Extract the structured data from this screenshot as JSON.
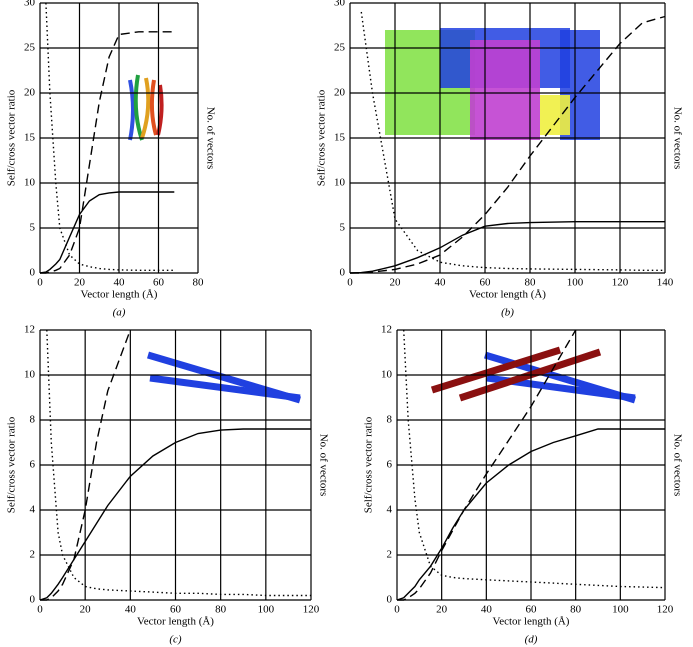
{
  "chart_data": [
    {
      "type": "line",
      "caption": "(a)",
      "xlabel": "Vector length (Å)",
      "ylabel": "Self/cross vector ratio",
      "y2label": "No. of vectors",
      "xlim": [
        0,
        80
      ],
      "xticks": [
        0,
        20,
        40,
        60,
        80
      ],
      "ylim": [
        0,
        30
      ],
      "yticks": [
        0,
        5,
        10,
        15,
        20,
        25,
        30
      ],
      "grid": true,
      "x": [
        0,
        3,
        5,
        8,
        10,
        15,
        20,
        25,
        30,
        35,
        40,
        50,
        60,
        68
      ],
      "series": [
        {
          "color": "#000000",
          "dash": "solid",
          "values": [
            0,
            0.1,
            0.4,
            1,
            1.5,
            4,
            6.5,
            8,
            8.7,
            8.9,
            9,
            9,
            9,
            9
          ]
        },
        {
          "color": "#000000",
          "dash": "dashed",
          "values": [
            0,
            0,
            0.1,
            0.3,
            0.5,
            2,
            5,
            12,
            19,
            24,
            26.5,
            26.8,
            26.8,
            26.8
          ]
        },
        {
          "color": "#000000",
          "dash": "dotted",
          "values": [
            null,
            30,
            20,
            10,
            5,
            2,
            1,
            0.7,
            0.5,
            0.4,
            0.35,
            0.3,
            0.3,
            0.3
          ]
        }
      ]
    },
    {
      "type": "line",
      "caption": "(b)",
      "xlabel": "Vector length (Å)",
      "ylabel": "Self/cross vector ratio",
      "y2label": "No. of vectors",
      "xlim": [
        0,
        140
      ],
      "xticks": [
        0,
        20,
        40,
        60,
        80,
        100,
        120,
        140
      ],
      "ylim": [
        0,
        30
      ],
      "yticks": [
        0,
        5,
        10,
        15,
        20,
        25,
        30
      ],
      "grid": true,
      "x": [
        0,
        5,
        10,
        20,
        30,
        40,
        50,
        60,
        70,
        80,
        100,
        120,
        130,
        140
      ],
      "series": [
        {
          "color": "#000000",
          "dash": "solid",
          "values": [
            0,
            0.05,
            0.2,
            0.8,
            1.7,
            2.8,
            4.2,
            5.2,
            5.5,
            5.6,
            5.7,
            5.7,
            5.7,
            5.7
          ]
        },
        {
          "color": "#000000",
          "dash": "dashed",
          "values": [
            0,
            0,
            0.1,
            0.4,
            1,
            2,
            4,
            6.5,
            9.5,
            13,
            19.5,
            25.5,
            27.8,
            28.5
          ]
        },
        {
          "color": "#000000",
          "dash": "dotted",
          "values": [
            null,
            29,
            20,
            6,
            2.5,
            1.2,
            0.8,
            0.6,
            0.5,
            0.45,
            0.4,
            0.35,
            0.3,
            0.3
          ]
        }
      ]
    },
    {
      "type": "line",
      "caption": "(c)",
      "xlabel": "Vector length (Å)",
      "ylabel": "Self/cross vector ratio",
      "y2label": "No. of vectors",
      "xlim": [
        0,
        120
      ],
      "xticks": [
        0,
        20,
        40,
        60,
        80,
        100,
        120
      ],
      "ylim": [
        0,
        12
      ],
      "yticks": [
        0,
        2,
        4,
        6,
        8,
        10,
        12
      ],
      "grid": true,
      "x": [
        0,
        3,
        5,
        8,
        10,
        15,
        20,
        25,
        30,
        40,
        50,
        60,
        70,
        80,
        90,
        100,
        120
      ],
      "series": [
        {
          "color": "#000000",
          "dash": "solid",
          "values": [
            0,
            0.1,
            0.3,
            0.7,
            1,
            1.8,
            2.6,
            3.4,
            4.2,
            5.5,
            6.4,
            7,
            7.4,
            7.55,
            7.6,
            7.6,
            7.6
          ]
        },
        {
          "color": "#000000",
          "dash": "dashed",
          "values": [
            0,
            0,
            0.1,
            0.4,
            0.7,
            1.8,
            4,
            7,
            9.3,
            12,
            null,
            null,
            null,
            null,
            null,
            null,
            null
          ]
        },
        {
          "color": "#000000",
          "dash": "dotted",
          "values": [
            null,
            12,
            7,
            3,
            2,
            1,
            0.6,
            0.5,
            0.45,
            0.4,
            0.35,
            0.3,
            0.3,
            0.25,
            0.25,
            0.2,
            0.2
          ]
        }
      ]
    },
    {
      "type": "line",
      "caption": "(d)",
      "xlabel": "Vector length (Å)",
      "ylabel": "Self/cross vector ratio",
      "y2label": "No. of vectors",
      "xlim": [
        0,
        120
      ],
      "xticks": [
        0,
        20,
        40,
        60,
        80,
        100,
        120
      ],
      "ylim": [
        0,
        12
      ],
      "yticks": [
        0,
        2,
        4,
        6,
        8,
        10,
        12
      ],
      "grid": true,
      "x": [
        0,
        3,
        5,
        8,
        10,
        15,
        20,
        25,
        30,
        40,
        50,
        60,
        70,
        80,
        90,
        100,
        120
      ],
      "series": [
        {
          "color": "#000000",
          "dash": "solid",
          "values": [
            0,
            0.1,
            0.3,
            0.6,
            0.9,
            1.5,
            2.3,
            3.2,
            4,
            5.2,
            6,
            6.6,
            7,
            7.3,
            7.6,
            7.6,
            7.6
          ]
        },
        {
          "color": "#000000",
          "dash": "dashed",
          "values": [
            0,
            0,
            0.1,
            0.3,
            0.5,
            1.2,
            2.2,
            3.1,
            4,
            5.6,
            7.1,
            8.6,
            10.3,
            12,
            null,
            null,
            null
          ]
        },
        {
          "color": "#000000",
          "dash": "dotted",
          "values": [
            null,
            12,
            8,
            4.5,
            3,
            1.5,
            1.1,
            1,
            0.95,
            0.9,
            0.85,
            0.8,
            0.75,
            0.7,
            0.65,
            0.6,
            0.55
          ]
        }
      ]
    }
  ]
}
